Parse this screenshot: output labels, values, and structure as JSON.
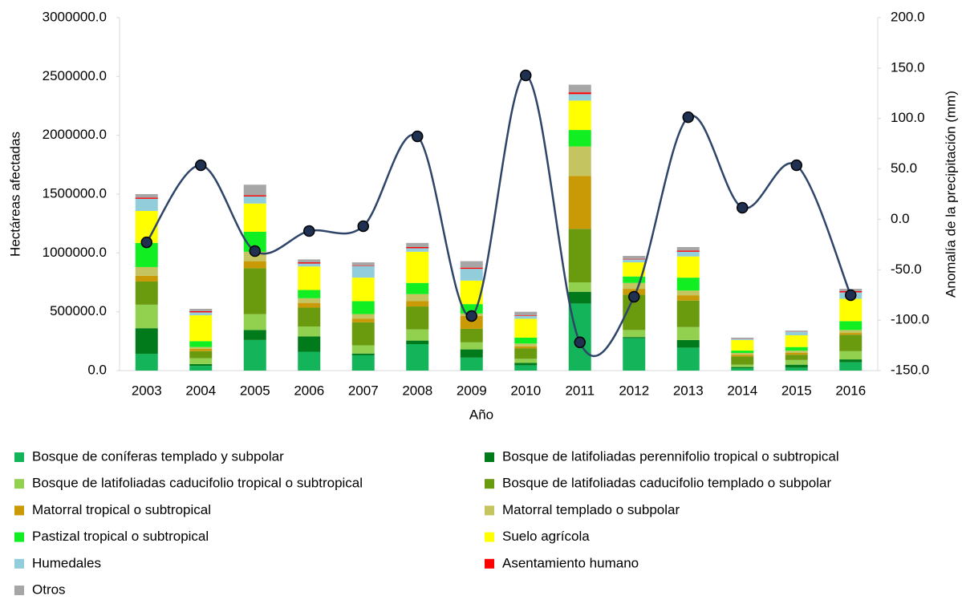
{
  "chart_data": {
    "type": "bar",
    "x_label": "Año",
    "y_label": "Hectáreas afectadas",
    "y2_label": "Anomalía de la precipitación (mm)",
    "categories": [
      "2003",
      "2004",
      "2005",
      "2006",
      "2007",
      "2008",
      "2009",
      "2010",
      "2011",
      "2012",
      "2013",
      "2014",
      "2015",
      "2016"
    ],
    "stacked": true,
    "legend": "bottom",
    "ylim": [
      0,
      3000000
    ],
    "yticks": [
      {
        "value": 0,
        "label": "0.0"
      },
      {
        "value": 500000,
        "label": "500000.0"
      },
      {
        "value": 1000000,
        "label": "1000000.0"
      },
      {
        "value": 1500000,
        "label": "1500000.0"
      },
      {
        "value": 2000000,
        "label": "2000000.0"
      },
      {
        "value": 2500000,
        "label": "2500000.0"
      },
      {
        "value": 3000000,
        "label": "3000000.0"
      }
    ],
    "y2lim": [
      -150,
      200
    ],
    "y2ticks": [
      {
        "value": -150,
        "label": "-150.0"
      },
      {
        "value": -100,
        "label": "-100.0"
      },
      {
        "value": -50,
        "label": "-50.0"
      },
      {
        "value": 0,
        "label": "0.0"
      },
      {
        "value": 50,
        "label": "50.0"
      },
      {
        "value": 100,
        "label": "100.0"
      },
      {
        "value": 150,
        "label": "150.0"
      },
      {
        "value": 200,
        "label": "200.0"
      }
    ],
    "series": [
      {
        "name": "Bosque de coníferas templado y subpolar",
        "color": "#14b45a",
        "values": [
          143000,
          40000,
          260000,
          160000,
          130000,
          225000,
          110000,
          45000,
          570000,
          275000,
          195000,
          20000,
          25000,
          70000
        ]
      },
      {
        "name": "Bosque de latifoliadas perennifolio tropical o subtropical",
        "color": "#007a1a",
        "values": [
          217000,
          15000,
          85000,
          130000,
          15000,
          30000,
          70000,
          20000,
          100000,
          10000,
          65000,
          10000,
          25000,
          25000
        ]
      },
      {
        "name": "Bosque de latifoliadas caducifolio tropical o subtropical",
        "color": "#92d050",
        "values": [
          200000,
          50000,
          135000,
          85000,
          70000,
          95000,
          60000,
          35000,
          80000,
          60000,
          110000,
          20000,
          40000,
          70000
        ]
      },
      {
        "name": "Bosque de latifoliadas caducifolio templado o subpolar",
        "color": "#6a9a0e",
        "values": [
          197000,
          60000,
          390000,
          160000,
          195000,
          195000,
          115000,
          90000,
          455000,
          300000,
          225000,
          70000,
          45000,
          140000
        ]
      },
      {
        "name": "Matorral tropical o subtropical",
        "color": "#c99a06",
        "values": [
          48000,
          20000,
          60000,
          40000,
          30000,
          45000,
          110000,
          15000,
          450000,
          50000,
          45000,
          15000,
          15000,
          15000
        ]
      },
      {
        "name": "Matorral templado o subpolar",
        "color": "#c4c460",
        "values": [
          75000,
          15000,
          80000,
          40000,
          40000,
          60000,
          20000,
          25000,
          250000,
          50000,
          40000,
          15000,
          20000,
          25000
        ]
      },
      {
        "name": "Pastizal tropical o subtropical",
        "color": "#11ee22",
        "values": [
          205000,
          50000,
          170000,
          70000,
          110000,
          95000,
          80000,
          50000,
          140000,
          55000,
          110000,
          20000,
          30000,
          75000
        ]
      },
      {
        "name": "Suelo agrícola",
        "color": "#ffff00",
        "values": [
          272000,
          220000,
          240000,
          200000,
          200000,
          265000,
          200000,
          160000,
          250000,
          120000,
          180000,
          90000,
          100000,
          190000
        ]
      },
      {
        "name": "Humedales",
        "color": "#92cddc",
        "values": [
          103000,
          25000,
          60000,
          25000,
          100000,
          30000,
          100000,
          25000,
          55000,
          25000,
          40000,
          10000,
          30000,
          55000
        ]
      },
      {
        "name": "Asentamiento humano",
        "color": "#ff0000",
        "values": [
          10000,
          10000,
          10000,
          10000,
          5000,
          10000,
          10000,
          5000,
          15000,
          5000,
          10000,
          2000,
          2000,
          10000
        ]
      },
      {
        "name": "Otros",
        "color": "#a6a6a6",
        "values": [
          30000,
          20000,
          90000,
          25000,
          25000,
          35000,
          55000,
          30000,
          65000,
          25000,
          30000,
          8000,
          8000,
          20000
        ]
      },
      {
        "name": "Anomalía de la precipitación",
        "type": "line",
        "axis": "y2",
        "color": "#2e4468",
        "marker_color": "#1f3050",
        "values": [
          -22.8,
          53.6,
          -31.5,
          -11.6,
          -6.8,
          82.3,
          -95.9,
          142.7,
          -122,
          -76.8,
          101.3,
          11.5,
          53.6,
          -75.2
        ]
      }
    ]
  }
}
